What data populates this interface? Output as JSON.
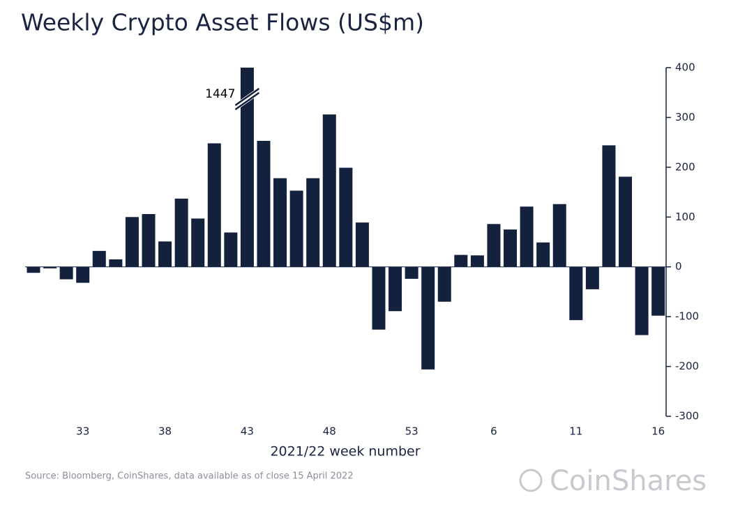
{
  "chart_data": {
    "type": "bar",
    "title": "Weekly Crypto Asset Flows (US$m)",
    "x_label": "2021/22 week number",
    "source": "Source: Bloomberg, CoinShares, data available as of close 15 April 2022",
    "brand": "CoinShares",
    "categories": [
      null,
      null,
      null,
      "33",
      null,
      null,
      null,
      null,
      "38",
      null,
      null,
      null,
      null,
      "43",
      null,
      null,
      null,
      null,
      "48",
      null,
      null,
      null,
      null,
      "53",
      null,
      null,
      null,
      null,
      "6",
      null,
      null,
      null,
      null,
      "11",
      null,
      null,
      null,
      null,
      "16"
    ],
    "values": [
      -12,
      -3,
      -25,
      -32,
      32,
      15,
      100,
      106,
      51,
      137,
      97,
      248,
      69,
      1447,
      253,
      178,
      153,
      178,
      306,
      199,
      89,
      -126,
      -89,
      -24,
      -206,
      -70,
      24,
      23,
      86,
      75,
      121,
      49,
      126,
      -107,
      -45,
      244,
      181,
      -137,
      -98
    ],
    "color": "#14213d",
    "ylim": [
      -300,
      400
    ],
    "yticks": [
      -300,
      -200,
      -100,
      0,
      100,
      200,
      300,
      400
    ],
    "y_axis_side": "right"
  }
}
